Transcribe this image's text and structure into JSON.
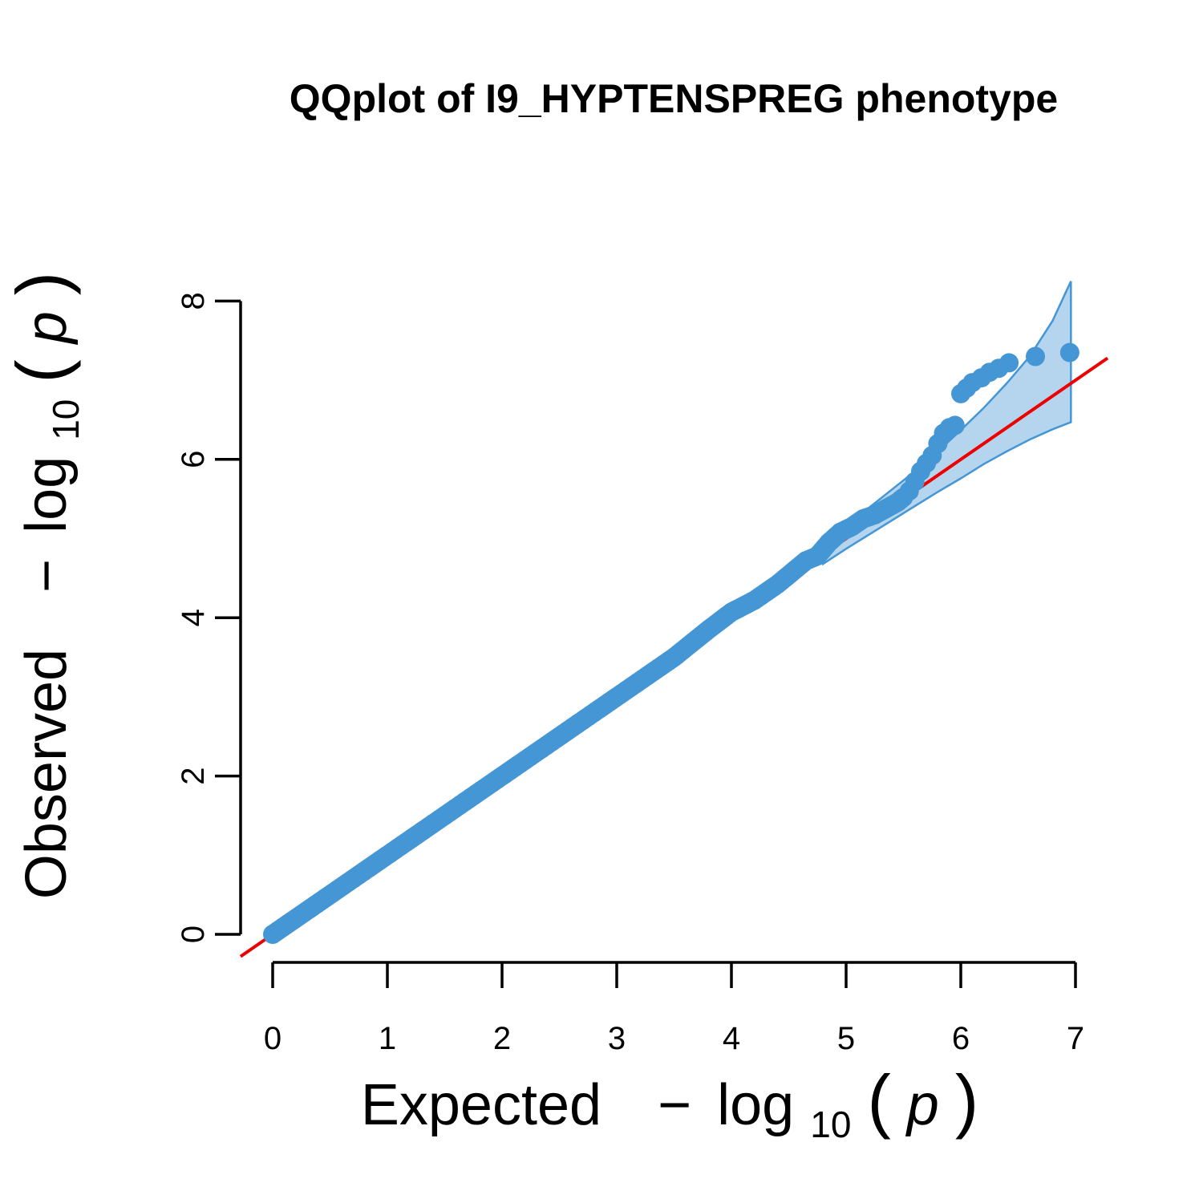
{
  "chart_data": {
    "type": "scatter",
    "title": "QQplot of I9_HYPTENSPREG phenotype",
    "xlabel": {
      "word": "Expected",
      "minus": "−",
      "log": "log",
      "base": "10",
      "open_paren": "(",
      "var": "p",
      "close_paren": ")"
    },
    "ylabel": {
      "word": "Observed",
      "minus": "−",
      "log": "log",
      "base": "10",
      "open_paren": "(",
      "var": "p",
      "close_paren": ")"
    },
    "xlim": [
      0,
      7
    ],
    "ylim": [
      0,
      8
    ],
    "x_ticks": [
      "0",
      "1",
      "2",
      "3",
      "4",
      "5",
      "6",
      "7"
    ],
    "y_ticks": [
      "0",
      "2",
      "4",
      "6",
      "8"
    ],
    "reference_line": {
      "slope": 1,
      "intercept": 0,
      "color": "#ee0000"
    },
    "confidence_band": {
      "color": "#b5d4ee",
      "edge_color": "#4596d4",
      "x": [
        4.8,
        5.0,
        5.2,
        5.4,
        5.6,
        5.8,
        6.0,
        6.2,
        6.4,
        6.6,
        6.8,
        6.96
      ],
      "upper": [
        4.95,
        5.17,
        5.39,
        5.62,
        5.85,
        6.1,
        6.37,
        6.65,
        6.96,
        7.3,
        7.75,
        8.25
      ],
      "lower": [
        4.68,
        4.87,
        5.05,
        5.23,
        5.41,
        5.59,
        5.76,
        5.94,
        6.1,
        6.25,
        6.38,
        6.47
      ]
    },
    "point_color": "#4596d4",
    "points": {
      "x": [
        0,
        0.5,
        1.0,
        1.5,
        2.0,
        2.5,
        3.0,
        3.5,
        3.8,
        4.0,
        4.2,
        4.4,
        4.55,
        4.65,
        4.75,
        4.85,
        4.95,
        5.05,
        5.15,
        5.25,
        5.35,
        5.45,
        5.5,
        5.55,
        5.6,
        5.65,
        5.7,
        5.75,
        5.8,
        5.85,
        5.9,
        5.95,
        6.0,
        6.05,
        6.1,
        6.18,
        6.25,
        6.33,
        6.42,
        6.65,
        6.95
      ],
      "y": [
        0,
        0.5,
        1.0,
        1.5,
        2.0,
        2.5,
        3.0,
        3.5,
        3.85,
        4.07,
        4.22,
        4.42,
        4.6,
        4.72,
        4.78,
        4.95,
        5.08,
        5.15,
        5.25,
        5.3,
        5.38,
        5.46,
        5.52,
        5.6,
        5.72,
        5.85,
        5.95,
        6.05,
        6.2,
        6.33,
        6.4,
        6.43,
        6.83,
        6.9,
        6.97,
        7.03,
        7.1,
        7.15,
        7.22,
        7.3,
        7.35
      ]
    }
  }
}
